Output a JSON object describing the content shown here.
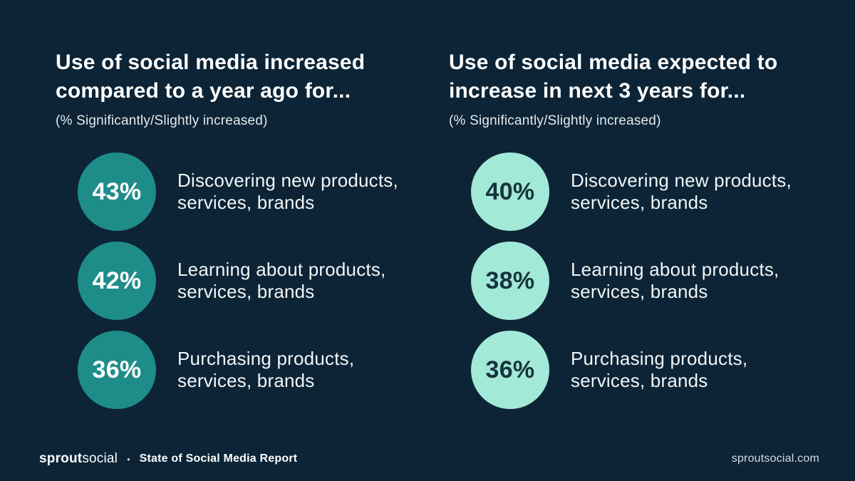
{
  "theme": {
    "bg": "#0c2436",
    "teal": "#1e8d89",
    "mint": "#a3e9d7",
    "value_dark": "#16333d",
    "subtitle": "#e4eaee",
    "text_light": "#f1f5f6"
  },
  "columns": [
    {
      "title": "Use of social media increased compared to a year ago for...",
      "title_lines": [
        "Use of social media increased",
        "compared to a year ago for..."
      ],
      "subtitle": "(% Significantly/Slightly increased)",
      "circle_color": "#1e8d89",
      "value_text_color": "#ffffff",
      "items": [
        {
          "value": "43%",
          "label": "Discovering new products, services, brands",
          "label_lines": [
            "Discovering new products,",
            "services, brands"
          ]
        },
        {
          "value": "42%",
          "label": "Learning about products, services, brands",
          "label_lines": [
            "Learning about products,",
            "services, brands"
          ]
        },
        {
          "value": "36%",
          "label": "Purchasing products, services, brands",
          "label_lines": [
            "Purchasing products,",
            "services, brands"
          ]
        }
      ]
    },
    {
      "title": "Use of social media expected to increase in next 3 years for...",
      "title_lines": [
        "Use of social media expected to",
        "increase in next 3 years for..."
      ],
      "subtitle": "(% Significantly/Slightly increased)",
      "circle_color": "#a3e9d7",
      "value_text_color": "#16333d",
      "items": [
        {
          "value": "40%",
          "label": "Discovering new products, services, brands",
          "label_lines": [
            "Discovering new products,",
            "services, brands"
          ]
        },
        {
          "value": "38%",
          "label": "Learning about products, services, brands",
          "label_lines": [
            "Learning about products,",
            "services, brands"
          ]
        },
        {
          "value": "36%",
          "label": "Purchasing products, services, brands",
          "label_lines": [
            "Purchasing products,",
            "services, brands"
          ]
        }
      ]
    }
  ],
  "footer": {
    "logo_bold": "sprout",
    "logo_regular": "social",
    "separator": "•",
    "report_title": "State of Social Media Report",
    "website": "sproutsocial.com"
  },
  "chart_data": [
    {
      "type": "table",
      "title": "Use of social media increased compared to a year ago for...",
      "subtitle": "(% Significantly/Slightly increased)",
      "categories": [
        "Discovering new products, services, brands",
        "Learning about products, services, brands",
        "Purchasing products, services, brands"
      ],
      "values": [
        43,
        42,
        36
      ],
      "unit": "%",
      "accent_color": "#1e8d89"
    },
    {
      "type": "table",
      "title": "Use of social media expected to increase in next 3 years for...",
      "subtitle": "(% Significantly/Slightly increased)",
      "categories": [
        "Discovering new products, services, brands",
        "Learning about products, services, brands",
        "Purchasing products, services, brands"
      ],
      "values": [
        40,
        38,
        36
      ],
      "unit": "%",
      "accent_color": "#a3e9d7"
    }
  ]
}
